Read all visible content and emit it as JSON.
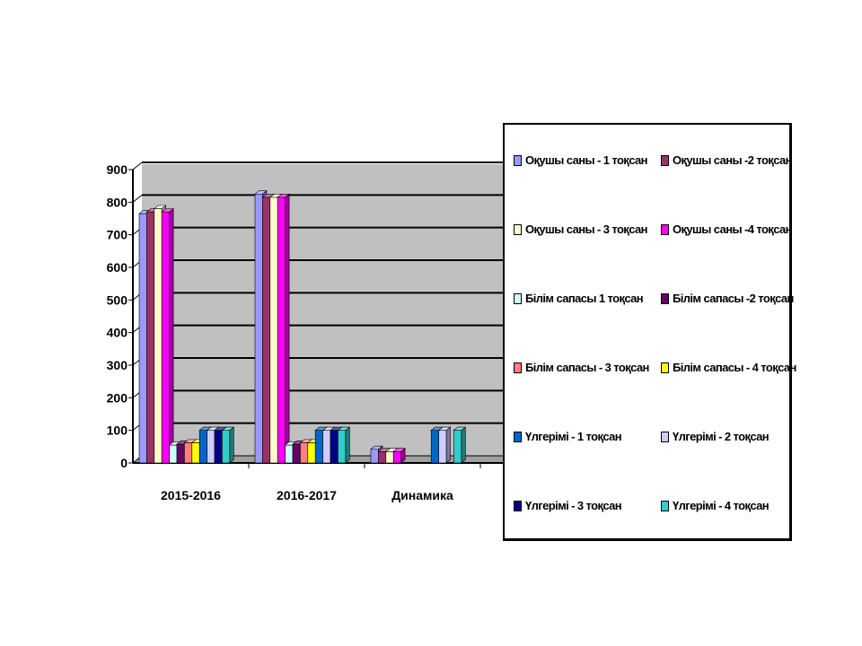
{
  "chart_data": {
    "type": "bar",
    "title": "",
    "xlabel": "",
    "ylabel": "",
    "ylim": [
      0,
      900
    ],
    "yticks": [
      0,
      100,
      200,
      300,
      400,
      500,
      600,
      700,
      800,
      900
    ],
    "grid": true,
    "legend_position": "right",
    "categories": [
      "2015-2016",
      "2016-2017",
      "Динамика"
    ],
    "series": [
      {
        "name": "Оқушы саны - 1 тоқсан",
        "color": "#9999ff",
        "values": [
          765,
          825,
          42
        ]
      },
      {
        "name": "Оқушы саны -2  тоқсан",
        "color": "#993366",
        "values": [
          770,
          815,
          35
        ]
      },
      {
        "name": "Оқушы саны - 3 тоқсан",
        "color": "#ffffcc",
        "values": [
          780,
          815,
          35
        ]
      },
      {
        "name": "Оқушы саны -4 тоқсан",
        "color": "#ff00ff",
        "values": [
          770,
          815,
          35
        ]
      },
      {
        "name": "Білім сапасы 1 тоқсан",
        "color": "#ccffff",
        "values": [
          55,
          55,
          0
        ]
      },
      {
        "name": "Білім сапасы -2 тоқсан",
        "color": "#660066",
        "values": [
          58,
          58,
          0
        ]
      },
      {
        "name": "Білім сапасы - 3 тоқсан",
        "color": "#ff8080",
        "values": [
          62,
          62,
          0
        ]
      },
      {
        "name": "Білім сапасы - 4 тоқсан",
        "color": "#ffff00",
        "values": [
          62,
          62,
          0
        ]
      },
      {
        "name": "Үлгерімі - 1 тоқсан",
        "color": "#0066cc",
        "values": [
          100,
          100,
          100
        ]
      },
      {
        "name": "Үлгерімі - 2 тоқсан",
        "color": "#ccccff",
        "values": [
          100,
          100,
          100
        ]
      },
      {
        "name": "Үлгерімі - 3 тоқсан",
        "color": "#000080",
        "values": [
          100,
          100,
          0
        ]
      },
      {
        "name": "Үлгерімі - 4 тоқсан",
        "color": "#33cccc",
        "values": [
          100,
          100,
          100
        ]
      }
    ]
  }
}
